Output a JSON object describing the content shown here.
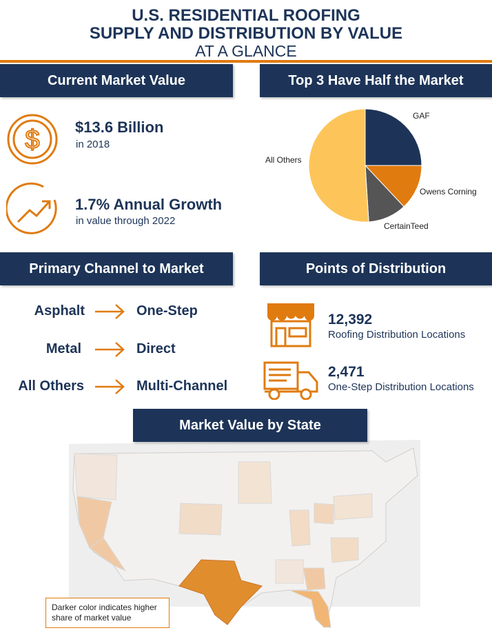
{
  "header": {
    "title_line1": "U.S. RESIDENTIAL ROOFING",
    "title_line2": "SUPPLY AND DISTRIBUTION BY VALUE",
    "subtitle": "AT A GLANCE"
  },
  "colors": {
    "navy": "#1d3458",
    "orange": "#e07b10",
    "pie_gaf": "#1d3458",
    "pie_owens": "#e07b10",
    "pie_certainteed": "#555555",
    "pie_others": "#fdc559"
  },
  "market_value": {
    "heading": "Current Market Value",
    "value": "$13.6 Billion",
    "value_note": "in 2018",
    "value_icon": "dollar-coin-icon",
    "growth": "1.7% Annual Growth",
    "growth_note": "in value through 2022",
    "growth_icon": "trend-up-icon"
  },
  "top3": {
    "heading": "Top 3 Have Half the Market",
    "chart_data": {
      "type": "pie",
      "categories": [
        "GAF",
        "Owens Corning",
        "CertainTeed",
        "All Others"
      ],
      "values": [
        25,
        13,
        11,
        51
      ]
    }
  },
  "channel": {
    "heading": "Primary Channel to Market",
    "rows": [
      {
        "product": "Asphalt",
        "channel": "One-Step"
      },
      {
        "product": "Metal",
        "channel": "Direct"
      },
      {
        "product": "All Others",
        "channel": "Multi-Channel"
      }
    ]
  },
  "distribution": {
    "heading": "Points of Distribution",
    "items": [
      {
        "number": "12,392",
        "label": "Roofing Distribution Locations",
        "icon": "storefront-icon"
      },
      {
        "number": "2,471",
        "label": "One-Step Distribution Locations",
        "icon": "delivery-truck-icon"
      }
    ]
  },
  "map": {
    "heading": "Market Value by State",
    "legend_line1": "Darker color indicates higher",
    "legend_line2": "share of market value"
  }
}
